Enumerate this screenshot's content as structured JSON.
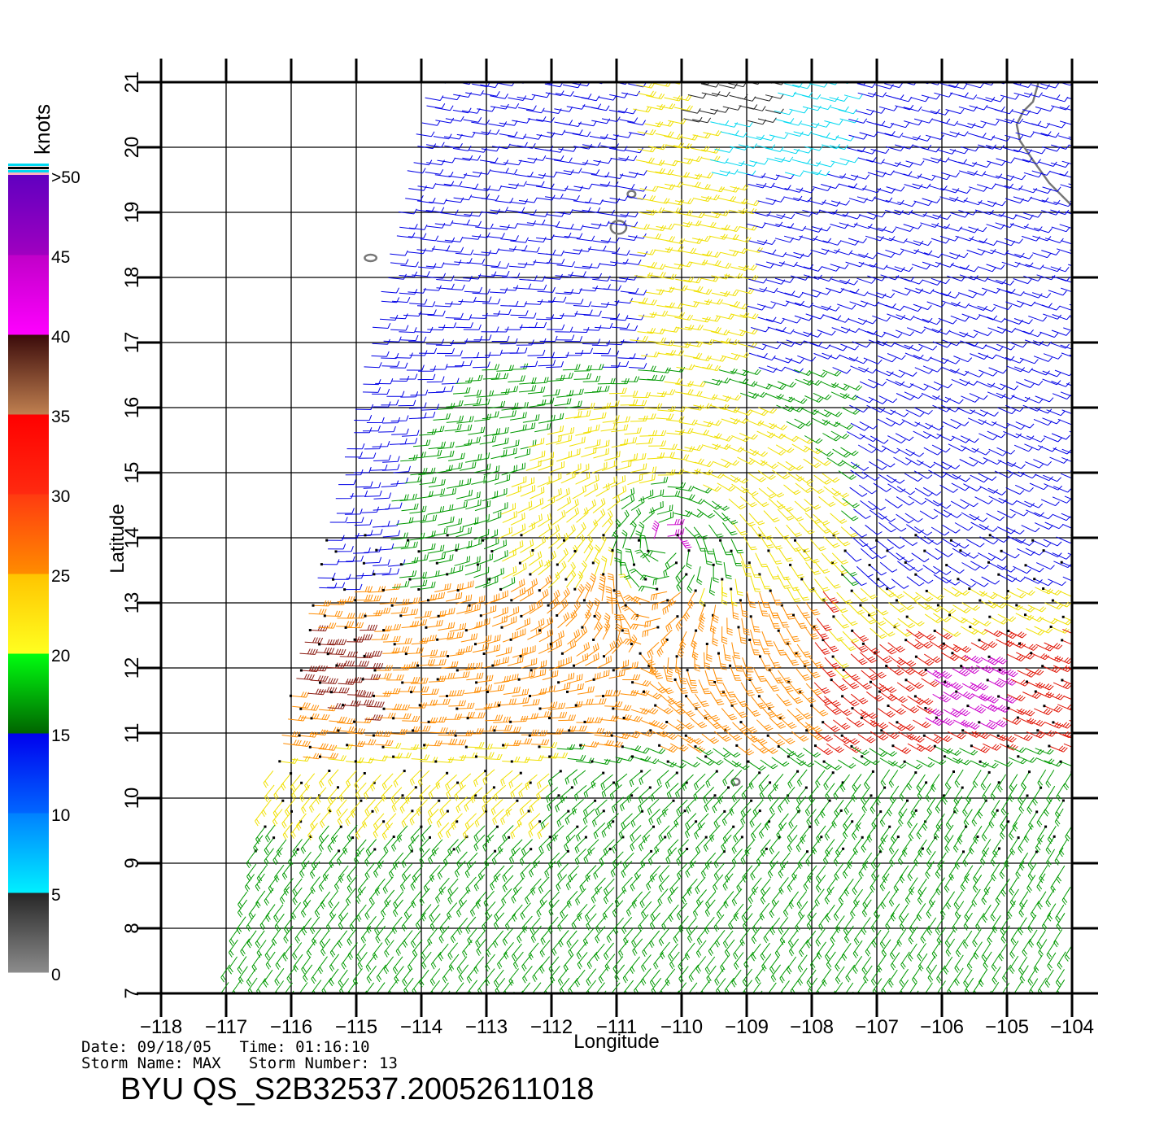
{
  "colorbar": {
    "title": "knots",
    "segments": [
      {
        "from": 0,
        "to": 5,
        "stops": [
          "#8c8c8c",
          "#262626"
        ]
      },
      {
        "from": 5,
        "to": 10,
        "stops": [
          "#00f0ff",
          "#0080ff"
        ]
      },
      {
        "from": 10,
        "to": 15,
        "stops": [
          "#0066ff",
          "#0000ee"
        ]
      },
      {
        "from": 15,
        "to": 20,
        "stops": [
          "#006400",
          "#00ff10"
        ]
      },
      {
        "from": 20,
        "to": 25,
        "stops": [
          "#ffff20",
          "#ffc400"
        ]
      },
      {
        "from": 25,
        "to": 30,
        "stops": [
          "#ff8c00",
          "#ff3a10"
        ]
      },
      {
        "from": 30,
        "to": 35,
        "stops": [
          "#ff2a10",
          "#ff0000"
        ]
      },
      {
        "from": 35,
        "to": 40,
        "stops": [
          "#c08050",
          "#3a0a0a"
        ]
      },
      {
        "from": 40,
        "to": 45,
        "stops": [
          "#ff00ff",
          "#c000c8"
        ]
      },
      {
        "from": 45,
        "to": 50,
        "stops": [
          "#a000c0",
          "#6000c0"
        ]
      }
    ],
    "tick_labels": [
      {
        "value": 0,
        "text": "0"
      },
      {
        "value": 5,
        "text": "5"
      },
      {
        "value": 10,
        "text": "10"
      },
      {
        "value": 15,
        "text": "15"
      },
      {
        "value": 20,
        "text": "20"
      },
      {
        "value": 25,
        "text": "25"
      },
      {
        "value": 30,
        "text": "30"
      },
      {
        "value": 35,
        "text": "35"
      },
      {
        "value": 40,
        "text": "40"
      },
      {
        "value": 45,
        "text": "45"
      },
      {
        "value": 50,
        "text": ">50"
      }
    ]
  },
  "map": {
    "lon_range": [
      -118,
      -104
    ],
    "lat_range": [
      7,
      21
    ],
    "xlabel": "Longitude",
    "ylabel": "Latitude",
    "lon_ticks": [
      {
        "value": -118,
        "text": "−118"
      },
      {
        "value": -117,
        "text": "−117"
      },
      {
        "value": -116,
        "text": "−116"
      },
      {
        "value": -115,
        "text": "−115"
      },
      {
        "value": -114,
        "text": "−114"
      },
      {
        "value": -113,
        "text": "−113"
      },
      {
        "value": -112,
        "text": "−112"
      },
      {
        "value": -111,
        "text": "−111"
      },
      {
        "value": -110,
        "text": "−110"
      },
      {
        "value": -109,
        "text": "−109"
      },
      {
        "value": -108,
        "text": "−108"
      },
      {
        "value": -107,
        "text": "−107"
      },
      {
        "value": -106,
        "text": "−106"
      },
      {
        "value": -105,
        "text": "−105"
      },
      {
        "value": -104,
        "text": "−104"
      }
    ],
    "lat_ticks": [
      {
        "value": 7,
        "text": "7"
      },
      {
        "value": 8,
        "text": "8"
      },
      {
        "value": 9,
        "text": "9"
      },
      {
        "value": 10,
        "text": "10"
      },
      {
        "value": 11,
        "text": "11"
      },
      {
        "value": 12,
        "text": "12"
      },
      {
        "value": 13,
        "text": "13"
      },
      {
        "value": 14,
        "text": "14"
      },
      {
        "value": 15,
        "text": "15"
      },
      {
        "value": 16,
        "text": "16"
      },
      {
        "value": 17,
        "text": "17"
      },
      {
        "value": 18,
        "text": "18"
      },
      {
        "value": 19,
        "text": "19"
      },
      {
        "value": 20,
        "text": "20"
      },
      {
        "value": 21,
        "text": "21"
      }
    ],
    "grid": true,
    "swath_corners": [
      [
        -113.95,
        21.05
      ],
      [
        -117.1,
        7.0
      ],
      [
        -104,
        7.0
      ],
      [
        -104,
        21.05
      ]
    ],
    "storm_center": {
      "lon": -110.2,
      "lat": 14.0
    },
    "coastline": [
      [
        -104.5,
        21.05
      ],
      [
        -104.6,
        20.7
      ],
      [
        -104.75,
        20.55
      ],
      [
        -104.85,
        20.35
      ],
      [
        -104.8,
        20.1
      ],
      [
        -104.6,
        19.8
      ],
      [
        -104.35,
        19.45
      ],
      [
        -104.1,
        19.2
      ],
      [
        -104.0,
        19.1
      ]
    ],
    "islands": [
      {
        "lon": -114.78,
        "lat": 18.3,
        "rx": 0.09,
        "ry": 0.05
      },
      {
        "lon": -110.97,
        "lat": 18.77,
        "rx": 0.12,
        "ry": 0.1
      },
      {
        "lon": -110.77,
        "lat": 19.28,
        "rx": 0.06,
        "ry": 0.05
      },
      {
        "lon": -109.17,
        "lat": 10.25,
        "rx": 0.06,
        "ry": 0.05
      }
    ],
    "wind_colors": {
      "calm": "#222222",
      "light": "#00d8f0",
      "moderate": "#0000e6",
      "fresh": "#009900",
      "strong": "#f0e000",
      "gale": "#ff8c00",
      "severe": "#e01000",
      "storm": "#8a1a10",
      "violent": "#cc00cc"
    }
  },
  "info": {
    "date_line": "Date: 09/18/05   Time: 01:16:10",
    "storm_line": "Storm Name: MAX   Storm Number: 13",
    "file_line": "BYU QS_S2B32537.20052611018"
  }
}
